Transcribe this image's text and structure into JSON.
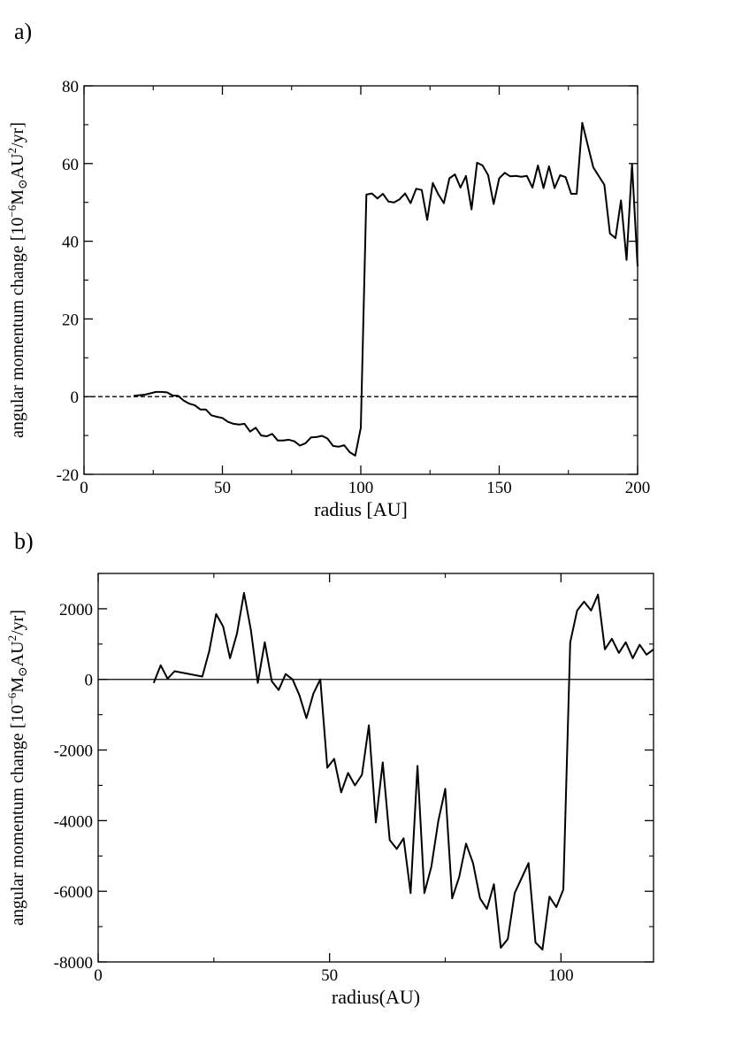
{
  "chart_data": [
    {
      "panel": "a)",
      "type": "line",
      "xlabel": "radius [AU]",
      "ylabel": {
        "pre": "angular momentum change [10",
        "exp1": "−6",
        "mid": "M",
        "sun": "⊙",
        "au": "AU",
        "exp2": "2",
        "post": "/yr]"
      },
      "xlim": [
        0,
        200
      ],
      "ylim": [
        -20,
        80
      ],
      "xticks": [
        0,
        50,
        100,
        150,
        200
      ],
      "yticks": [
        -20,
        0,
        20,
        40,
        60,
        80
      ],
      "xtick_labels": [
        "0",
        "50",
        "100",
        "150",
        "200"
      ],
      "ytick_labels": [
        "-20",
        "0",
        "20",
        "40",
        "60",
        "80"
      ],
      "zero_line": "dashed",
      "series": [
        {
          "x": [
            18,
            22,
            26,
            28,
            30,
            32,
            34,
            36,
            38,
            40,
            42,
            44,
            46,
            48,
            50,
            52,
            54,
            56,
            58,
            60,
            62,
            64,
            66,
            68,
            70,
            72,
            74,
            76,
            78,
            80,
            82,
            84,
            86,
            88,
            90,
            92,
            94,
            96,
            98,
            100,
            102,
            104,
            106,
            108,
            110,
            112,
            114,
            116,
            118,
            120,
            122,
            124,
            126,
            128,
            130,
            132,
            134,
            136,
            138,
            140,
            142,
            144,
            146,
            148,
            150,
            152,
            154,
            156,
            158,
            160,
            162,
            164,
            166,
            168,
            170,
            172,
            174,
            176,
            178,
            180,
            184,
            188,
            190,
            192,
            194,
            196,
            198,
            200
          ],
          "y": [
            0.2,
            0.5,
            1.2,
            1.2,
            1.1,
            0.3,
            0.2,
            -1.0,
            -1.8,
            -2.2,
            -3.3,
            -3.3,
            -4.8,
            -5.2,
            -5.5,
            -6.5,
            -7.0,
            -7.2,
            -7.0,
            -9.0,
            -8.0,
            -10.0,
            -10.2,
            -9.6,
            -11.3,
            -11.3,
            -11.1,
            -11.5,
            -12.6,
            -12.0,
            -10.5,
            -10.4,
            -10.1,
            -10.8,
            -12.7,
            -12.9,
            -12.5,
            -14.3,
            -15.2,
            -8.0,
            52.0,
            52.3,
            51.0,
            52.2,
            50.2,
            50.0,
            50.8,
            52.3,
            49.8,
            53.5,
            53.2,
            45.5,
            55.0,
            52.1,
            49.8,
            56.2,
            57.2,
            53.8,
            56.8,
            48.2,
            60.2,
            59.5,
            57.0,
            49.6,
            56.2,
            57.6,
            56.7,
            56.8,
            56.6,
            56.8,
            53.8,
            59.5,
            53.7,
            59.3,
            53.7,
            57.0,
            56.5,
            52.2,
            52.2,
            70.5,
            59.0,
            54.5,
            42.0,
            40.8,
            50.5,
            35.2,
            59.8,
            33.5
          ]
        }
      ]
    },
    {
      "panel": "b)",
      "type": "line",
      "xlabel": "radius(AU)",
      "ylabel": {
        "pre": "angular momentum change [10",
        "exp1": "−6",
        "mid": "M",
        "sun": "⊙",
        "au": "AU",
        "exp2": "2",
        "post": "/yr]"
      },
      "xlim": [
        0,
        120
      ],
      "ylim": [
        -8000,
        3000
      ],
      "xticks": [
        0,
        50,
        100
      ],
      "yticks": [
        -8000,
        -6000,
        -4000,
        -2000,
        0,
        2000
      ],
      "xtick_labels": [
        "0",
        "50",
        "100"
      ],
      "ytick_labels": [
        "-8000",
        "-6000",
        "-4000",
        "-2000",
        "0",
        "2000"
      ],
      "zero_line": "solid",
      "series": [
        {
          "x": [
            12,
            13.5,
            15,
            16.5,
            22.5,
            24,
            25.5,
            27,
            28.5,
            30,
            31.5,
            33,
            34.5,
            36,
            37.5,
            39,
            40.5,
            42,
            43.5,
            45,
            46.5,
            48,
            49.5,
            51,
            52.5,
            54,
            55.5,
            57,
            58.5,
            60,
            61.5,
            63,
            64.5,
            66,
            67.5,
            69,
            70.5,
            72,
            73.5,
            75,
            76.5,
            78,
            79.5,
            81,
            82.5,
            84,
            85.5,
            87,
            88.5,
            90,
            93,
            94.5,
            96,
            97.5,
            99,
            100.5,
            102,
            103.5,
            105,
            106.5,
            108,
            109.5,
            111,
            112.5,
            114,
            115.5,
            117,
            118.5,
            120
          ],
          "y": [
            -100,
            400,
            20,
            230,
            80,
            800,
            1850,
            1500,
            600,
            1300,
            2450,
            1400,
            -100,
            1050,
            -50,
            -300,
            150,
            0,
            -450,
            -1100,
            -400,
            0,
            -2500,
            -2250,
            -3200,
            -2650,
            -3000,
            -2700,
            -1300,
            -4050,
            -2350,
            -4550,
            -4800,
            -4500,
            -6050,
            -2450,
            -6050,
            -5300,
            -4000,
            -3100,
            -6200,
            -5600,
            -4650,
            -5200,
            -6200,
            -6500,
            -5800,
            -7600,
            -7350,
            -6050,
            -5200,
            -7450,
            -7650,
            -6150,
            -6450,
            -5950,
            1050,
            1950,
            2200,
            1950,
            2400,
            850,
            1150,
            750,
            1050,
            600,
            980,
            700,
            850
          ]
        }
      ]
    }
  ]
}
